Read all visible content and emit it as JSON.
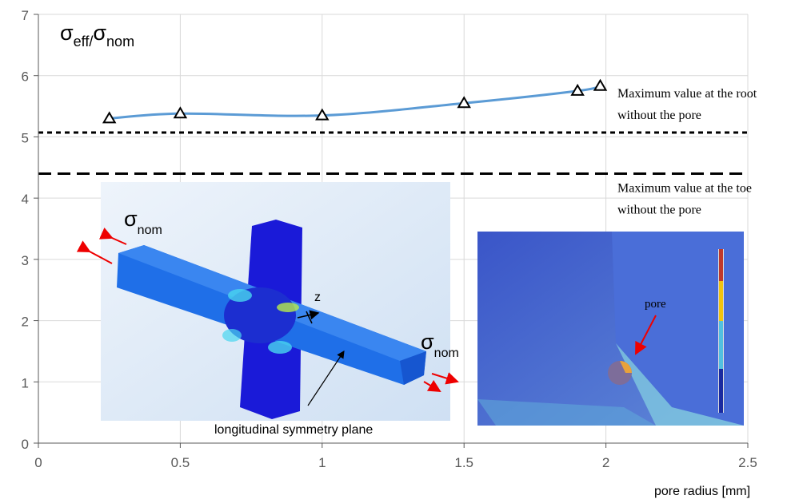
{
  "chart_data": {
    "type": "line",
    "xlabel": "pore radius [mm]",
    "ylabel": [
      "σ",
      "eff/",
      "σ",
      "nom"
    ],
    "x": [
      0.25,
      0.5,
      1,
      1.5,
      1.9,
      1.98
    ],
    "series": [
      {
        "color": "#5b9bd5",
        "values": [
          5.3,
          5.38,
          5.35,
          5.55,
          5.75,
          5.83
        ]
      }
    ],
    "xlim": [
      0,
      2.5
    ],
    "xticks": [
      0,
      0.5,
      1,
      1.5,
      2,
      2.5
    ],
    "ylim": [
      0,
      7
    ],
    "yticks": [
      0,
      1,
      2,
      3,
      4,
      5,
      6,
      7
    ],
    "grid": true,
    "reference_lines": [
      {
        "value": 5.07,
        "label": [
          "Maximum value at the root",
          "without the pore"
        ]
      },
      {
        "value": 4.4,
        "label": [
          "Maximum value at the toe",
          "without the pore"
        ]
      }
    ],
    "annotations": {
      "sigma_nom_left": [
        "σ",
        "nom"
      ],
      "sigma_nom_right": [
        "σ",
        "nom"
      ],
      "axis_z": "z",
      "symmetry_plane": "longitudinal symmetry plane",
      "pore": "pore"
    }
  }
}
